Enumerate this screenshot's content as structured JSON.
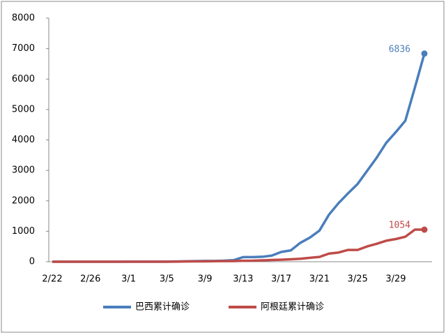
{
  "chart_data": {
    "type": "line",
    "categories": [
      "2/22",
      null,
      null,
      null,
      "2/26",
      null,
      null,
      null,
      "3/1",
      null,
      null,
      null,
      "3/5",
      null,
      null,
      null,
      "3/9",
      null,
      null,
      null,
      "3/13",
      null,
      null,
      null,
      "3/17",
      null,
      null,
      null,
      "3/21",
      null,
      null,
      null,
      "3/25",
      null,
      null,
      null,
      "3/29",
      null,
      null,
      null
    ],
    "series": [
      {
        "name": "巴西累计确诊",
        "color": "#4a7ebb",
        "values": [
          0,
          0,
          0,
          0,
          1,
          1,
          1,
          1,
          2,
          2,
          2,
          2,
          3,
          8,
          13,
          19,
          25,
          25,
          34,
          52,
          151,
          151,
          162,
          200,
          321,
          372,
          621,
          793,
          1021,
          1546,
          1924,
          2247,
          2554,
          2985,
          3417,
          3904,
          4256,
          4630,
          5717,
          6836
        ]
      },
      {
        "name": "阿根廷累计确诊",
        "color": "#be4b48",
        "values": [
          0,
          0,
          0,
          0,
          0,
          0,
          0,
          0,
          0,
          0,
          1,
          1,
          1,
          2,
          8,
          12,
          12,
          17,
          19,
          21,
          31,
          34,
          45,
          56,
          65,
          79,
          97,
          128,
          158,
          266,
          301,
          387,
          387,
          502,
          589,
          690,
          745,
          820,
          1054,
          1054
        ]
      }
    ],
    "ylim": [
      0,
      8000
    ],
    "yticks": [
      0,
      1000,
      2000,
      3000,
      4000,
      5000,
      6000,
      7000,
      8000
    ],
    "legend": "bottom"
  }
}
